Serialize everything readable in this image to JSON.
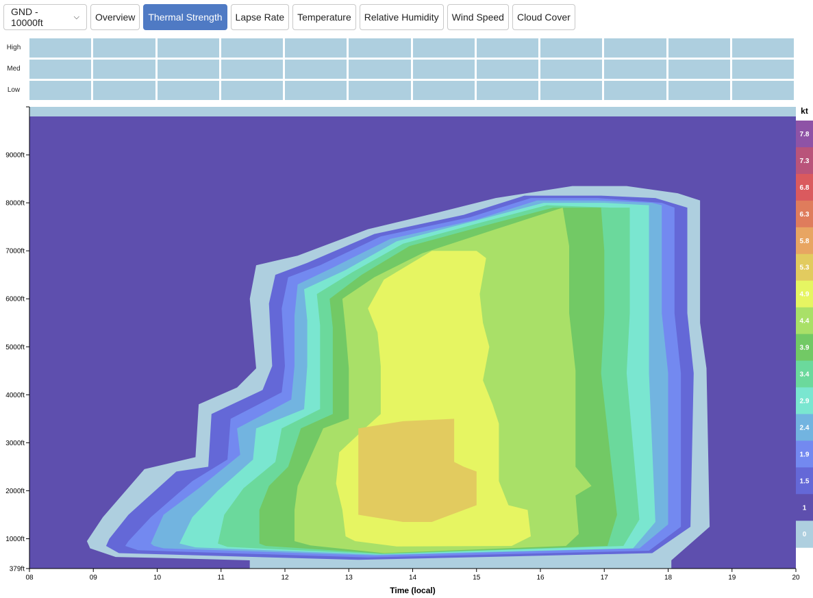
{
  "toolbar": {
    "altitude_select": "GND - 10000ft",
    "buttons": [
      {
        "label": "Overview",
        "active": false
      },
      {
        "label": "Thermal Strength",
        "active": true
      },
      {
        "label": "Lapse Rate",
        "active": false
      },
      {
        "label": "Temperature",
        "active": false
      },
      {
        "label": "Relative Humidity",
        "active": false
      },
      {
        "label": "Wind Speed",
        "active": false
      },
      {
        "label": "Cloud Cover",
        "active": false
      }
    ]
  },
  "cloud_cover": {
    "rows": [
      "High",
      "Med",
      "Low"
    ],
    "columns": 12,
    "cell_color": "#aecfdf"
  },
  "chart_data": {
    "type": "heatmap",
    "xlabel": "Time (local)",
    "ylabel": "",
    "units_label": "kt",
    "x_ticks": [
      "08",
      "09",
      "10",
      "11",
      "12",
      "13",
      "14",
      "15",
      "16",
      "17",
      "18",
      "19",
      "20"
    ],
    "xlim": [
      8,
      20
    ],
    "y_ticks": [
      {
        "value": 379,
        "label": "379ft"
      },
      {
        "value": 1000,
        "label": "1000ft"
      },
      {
        "value": 2000,
        "label": "2000ft"
      },
      {
        "value": 3000,
        "label": "3000ft"
      },
      {
        "value": 4000,
        "label": "4000ft"
      },
      {
        "value": 5000,
        "label": "5000ft"
      },
      {
        "value": 6000,
        "label": "6000ft"
      },
      {
        "value": 7000,
        "label": "7000ft"
      },
      {
        "value": 8000,
        "label": "8000ft"
      },
      {
        "value": 9000,
        "label": "9000ft"
      }
    ],
    "ylim": [
      379,
      10000
    ],
    "background_color": "#aecfdf",
    "legend": {
      "placement": "right",
      "levels": [
        {
          "label": "7.8",
          "color": "#8e53a6"
        },
        {
          "label": "7.3",
          "color": "#b9547a"
        },
        {
          "label": "6.8",
          "color": "#da5a5e"
        },
        {
          "label": "6.3",
          "color": "#df7c5c"
        },
        {
          "label": "5.8",
          "color": "#e8a562"
        },
        {
          "label": "5.3",
          "color": "#e2cb5f"
        },
        {
          "label": "4.9",
          "color": "#e6f562"
        },
        {
          "label": "4.4",
          "color": "#a9e068"
        },
        {
          "label": "3.9",
          "color": "#72c965"
        },
        {
          "label": "3.4",
          "color": "#6bd99c"
        },
        {
          "label": "2.9",
          "color": "#7ae6d0"
        },
        {
          "label": "2.4",
          "color": "#72b4e0"
        },
        {
          "label": "1.9",
          "color": "#7389f0"
        },
        {
          "label": "1.5",
          "color": "#6468d7"
        },
        {
          "label": "1",
          "color": "#5e4fae"
        },
        {
          "label": "0",
          "color": "#aecfdf"
        }
      ]
    },
    "contours": [
      {
        "level": "1",
        "color": "#5e4fae",
        "points": [
          [
            9.55,
            9800
          ],
          [
            8.45,
            9800
          ],
          [
            8,
            9800
          ],
          [
            8,
            9700
          ],
          [
            8,
            379
          ],
          [
            11.45,
            379
          ],
          [
            11.45,
            550
          ],
          [
            10.05,
            600
          ],
          [
            9.35,
            620
          ],
          [
            8.95,
            800
          ],
          [
            8.9,
            950
          ],
          [
            9.15,
            1450
          ],
          [
            9.8,
            2450
          ],
          [
            10.6,
            2700
          ],
          [
            10.65,
            3800
          ],
          [
            11.25,
            4150
          ],
          [
            11.55,
            4550
          ],
          [
            11.45,
            6000
          ],
          [
            11.55,
            6700
          ],
          [
            12.2,
            6900
          ],
          [
            13.3,
            7450
          ],
          [
            14.4,
            7800
          ],
          [
            15.3,
            8100
          ],
          [
            16.5,
            8350
          ],
          [
            17.35,
            8350
          ],
          [
            18.15,
            8200
          ],
          [
            18.5,
            8050
          ],
          [
            18.5,
            5500
          ],
          [
            18.6,
            4550
          ],
          [
            18.65,
            1250
          ],
          [
            18.05,
            550
          ],
          [
            18.05,
            379
          ],
          [
            20,
            379
          ],
          [
            20,
            9700
          ],
          [
            20,
            9800
          ],
          [
            19.55,
            9800
          ]
        ]
      },
      {
        "level": "1.5",
        "color": "#6468d7",
        "points": [
          [
            9.25,
            1000
          ],
          [
            9.55,
            1500
          ],
          [
            10.3,
            2400
          ],
          [
            10.8,
            2500
          ],
          [
            10.85,
            3600
          ],
          [
            11.65,
            4100
          ],
          [
            11.8,
            4600
          ],
          [
            11.75,
            5900
          ],
          [
            11.85,
            6500
          ],
          [
            12.35,
            6750
          ],
          [
            13.4,
            7350
          ],
          [
            14.8,
            7750
          ],
          [
            15.75,
            8150
          ],
          [
            16.95,
            8150
          ],
          [
            17.8,
            8100
          ],
          [
            18.3,
            7900
          ],
          [
            18.3,
            5700
          ],
          [
            18.4,
            4450
          ],
          [
            18.35,
            1250
          ],
          [
            17.75,
            700
          ],
          [
            13.15,
            560
          ],
          [
            9.4,
            700
          ],
          [
            9.2,
            850
          ]
        ]
      },
      {
        "level": "1.9",
        "color": "#7389f0",
        "points": [
          [
            9.55,
            950
          ],
          [
            9.9,
            1450
          ],
          [
            10.55,
            2200
          ],
          [
            11.1,
            2650
          ],
          [
            11.15,
            3500
          ],
          [
            11.95,
            4050
          ],
          [
            12.0,
            4600
          ],
          [
            11.95,
            5800
          ],
          [
            12.05,
            6450
          ],
          [
            12.55,
            6700
          ],
          [
            13.5,
            7300
          ],
          [
            14.9,
            7700
          ],
          [
            15.85,
            8100
          ],
          [
            16.9,
            8100
          ],
          [
            17.9,
            8000
          ],
          [
            18.1,
            7900
          ],
          [
            18.1,
            5700
          ],
          [
            18.2,
            4450
          ],
          [
            18.2,
            1250
          ],
          [
            17.7,
            750
          ],
          [
            13.3,
            610
          ],
          [
            9.7,
            760
          ],
          [
            9.5,
            850
          ]
        ]
      },
      {
        "level": "2.4",
        "color": "#72b4e0",
        "points": [
          [
            9.9,
            900
          ],
          [
            10.1,
            1500
          ],
          [
            10.65,
            2050
          ],
          [
            11.3,
            2750
          ],
          [
            11.25,
            3300
          ],
          [
            12.1,
            3900
          ],
          [
            12.15,
            4600
          ],
          [
            12.15,
            5650
          ],
          [
            12.2,
            6300
          ],
          [
            12.75,
            6650
          ],
          [
            13.65,
            7250
          ],
          [
            15.0,
            7650
          ],
          [
            15.95,
            8050
          ],
          [
            16.9,
            8050
          ],
          [
            17.75,
            8000
          ],
          [
            17.9,
            7950
          ],
          [
            17.9,
            5700
          ],
          [
            18.0,
            4450
          ],
          [
            18.0,
            1300
          ],
          [
            17.55,
            800
          ],
          [
            13.4,
            650
          ],
          [
            10.1,
            800
          ],
          [
            9.95,
            850
          ]
        ]
      },
      {
        "level": "2.9",
        "color": "#7ae6d0",
        "points": [
          [
            10.35,
            900
          ],
          [
            10.55,
            1450
          ],
          [
            10.95,
            2000
          ],
          [
            11.5,
            2650
          ],
          [
            11.55,
            3300
          ],
          [
            12.3,
            3700
          ],
          [
            12.35,
            4600
          ],
          [
            12.35,
            5550
          ],
          [
            12.3,
            6200
          ],
          [
            12.95,
            6600
          ],
          [
            13.75,
            7200
          ],
          [
            15.05,
            7650
          ],
          [
            16.05,
            8000
          ],
          [
            17.0,
            8000
          ],
          [
            17.7,
            7950
          ],
          [
            17.7,
            5700
          ],
          [
            17.7,
            4450
          ],
          [
            17.8,
            1350
          ],
          [
            17.45,
            800
          ],
          [
            13.45,
            670
          ],
          [
            10.6,
            820
          ]
        ]
      },
      {
        "level": "3.4",
        "color": "#6bd99c",
        "points": [
          [
            10.95,
            900
          ],
          [
            11.05,
            1500
          ],
          [
            11.35,
            2050
          ],
          [
            11.85,
            2600
          ],
          [
            11.95,
            3300
          ],
          [
            12.55,
            3700
          ],
          [
            12.55,
            4600
          ],
          [
            12.55,
            5450
          ],
          [
            12.5,
            6100
          ],
          [
            13.05,
            6550
          ],
          [
            13.85,
            7150
          ],
          [
            15.1,
            7600
          ],
          [
            16.1,
            7950
          ],
          [
            17.1,
            7900
          ],
          [
            17.4,
            7900
          ],
          [
            17.4,
            5700
          ],
          [
            17.35,
            4450
          ],
          [
            17.55,
            1400
          ],
          [
            17.3,
            850
          ],
          [
            13.5,
            680
          ],
          [
            11.1,
            830
          ]
        ]
      },
      {
        "level": "3.9",
        "color": "#72c965",
        "points": [
          [
            11.6,
            900
          ],
          [
            11.6,
            1600
          ],
          [
            11.75,
            2100
          ],
          [
            12.05,
            2500
          ],
          [
            12.25,
            3300
          ],
          [
            12.75,
            3600
          ],
          [
            12.75,
            4600
          ],
          [
            12.75,
            5400
          ],
          [
            12.7,
            6000
          ],
          [
            13.2,
            6500
          ],
          [
            13.95,
            7100
          ],
          [
            15.2,
            7550
          ],
          [
            16.2,
            7900
          ],
          [
            16.95,
            7900
          ],
          [
            17.0,
            7000
          ],
          [
            17.0,
            5700
          ],
          [
            16.95,
            4450
          ],
          [
            17.2,
            1500
          ],
          [
            17.05,
            850
          ],
          [
            13.55,
            690
          ],
          [
            11.7,
            850
          ]
        ]
      },
      {
        "level": "4.4",
        "color": "#a9e068",
        "points": [
          [
            12.15,
            950
          ],
          [
            12.15,
            1600
          ],
          [
            12.2,
            2100
          ],
          [
            12.35,
            2550
          ],
          [
            12.6,
            3300
          ],
          [
            13.0,
            3500
          ],
          [
            13.0,
            4550
          ],
          [
            12.95,
            5350
          ],
          [
            12.9,
            6000
          ],
          [
            13.4,
            6450
          ],
          [
            14.15,
            6950
          ],
          [
            15.3,
            7450
          ],
          [
            16.35,
            7900
          ],
          [
            16.45,
            7100
          ],
          [
            16.45,
            5700
          ],
          [
            16.55,
            4500
          ],
          [
            16.55,
            2500
          ],
          [
            16.8,
            2100
          ],
          [
            16.55,
            1900
          ],
          [
            16.6,
            1100
          ],
          [
            16.4,
            850
          ],
          [
            13.55,
            700
          ],
          [
            12.4,
            860
          ]
        ]
      },
      {
        "level": "4.9",
        "color": "#e6f562",
        "points": [
          [
            12.95,
            1050
          ],
          [
            12.9,
            1600
          ],
          [
            12.8,
            2150
          ],
          [
            12.85,
            2800
          ],
          [
            13.25,
            3300
          ],
          [
            13.5,
            3600
          ],
          [
            13.5,
            4600
          ],
          [
            13.45,
            5300
          ],
          [
            13.3,
            5800
          ],
          [
            13.55,
            6400
          ],
          [
            14.05,
            6800
          ],
          [
            14.3,
            7000
          ],
          [
            15.0,
            7000
          ],
          [
            15.15,
            6850
          ],
          [
            15.05,
            6100
          ],
          [
            15.1,
            5500
          ],
          [
            15.2,
            5000
          ],
          [
            15.1,
            4300
          ],
          [
            15.25,
            3800
          ],
          [
            15.35,
            3400
          ],
          [
            15.35,
            2800
          ],
          [
            15.35,
            2200
          ],
          [
            15.5,
            1700
          ],
          [
            15.8,
            1600
          ],
          [
            15.85,
            1050
          ],
          [
            15.55,
            850
          ],
          [
            13.75,
            840
          ],
          [
            13.1,
            950
          ]
        ]
      },
      {
        "level": "5.3",
        "color": "#e2cb5f",
        "points": [
          [
            13.15,
            1500
          ],
          [
            13.15,
            3300
          ],
          [
            13.85,
            3450
          ],
          [
            14.65,
            3500
          ],
          [
            14.65,
            2600
          ],
          [
            14.8,
            2500
          ],
          [
            15.0,
            2400
          ],
          [
            15.0,
            1700
          ],
          [
            14.3,
            1350
          ],
          [
            13.85,
            1350
          ]
        ]
      }
    ]
  }
}
